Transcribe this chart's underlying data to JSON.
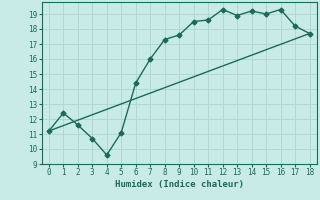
{
  "xlabel": "Humidex (Indice chaleur)",
  "ylabel": "",
  "background_color": "#c8ebe8",
  "grid_color": "#b0d8d4",
  "line_color": "#1a6b5a",
  "xlim": [
    -0.5,
    18.5
  ],
  "ylim": [
    9,
    19.8
  ],
  "xticks": [
    0,
    1,
    2,
    3,
    4,
    5,
    6,
    7,
    8,
    9,
    10,
    11,
    12,
    13,
    14,
    15,
    16,
    17,
    18
  ],
  "yticks": [
    9,
    10,
    11,
    12,
    13,
    14,
    15,
    16,
    17,
    18,
    19
  ],
  "line1_x": [
    0,
    1,
    2,
    3,
    4,
    5,
    6,
    7,
    8,
    9,
    10,
    11,
    12,
    13,
    14,
    15,
    16,
    17,
    18
  ],
  "line1_y": [
    11.2,
    12.4,
    11.6,
    10.7,
    9.6,
    11.1,
    14.4,
    16.0,
    17.3,
    17.6,
    18.5,
    18.6,
    19.3,
    18.9,
    19.2,
    19.0,
    19.3,
    18.2,
    17.7
  ],
  "line2_x": [
    0,
    18
  ],
  "line2_y": [
    11.2,
    17.7
  ],
  "marker": "D",
  "marker_size": 2.5,
  "linewidth": 1.0
}
